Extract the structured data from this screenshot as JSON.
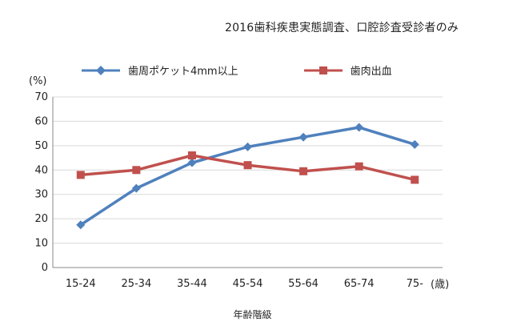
{
  "chart_data": {
    "type": "line",
    "title": "2016歯科疾患実態調査、口腔診査受診者のみ",
    "ylabel": "(%)",
    "x_unit": "(歳)",
    "xlabel": "年齢階級",
    "categories": [
      "15-24",
      "25-34",
      "35-44",
      "45-54",
      "55-64",
      "65-74",
      "75-"
    ],
    "yticks": [
      "0",
      "10",
      "20",
      "30",
      "40",
      "50",
      "60",
      "70"
    ],
    "ylim": [
      0,
      70
    ],
    "grid": true,
    "legend_position": "top",
    "series": [
      {
        "name": "歯周ポケット4mm以上",
        "color": "#4f81bd",
        "marker": "diamond",
        "values": [
          17.5,
          32.5,
          43.0,
          49.5,
          53.5,
          57.5,
          50.5
        ]
      },
      {
        "name": "歯肉出血",
        "color": "#c0504d",
        "marker": "square",
        "values": [
          38.0,
          40.0,
          46.0,
          42.0,
          39.5,
          41.5,
          36.0
        ]
      }
    ]
  }
}
